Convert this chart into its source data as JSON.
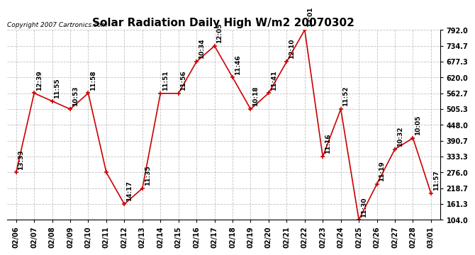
{
  "title": "Solar Radiation Daily High W/m2 20070302",
  "copyright": "Copyright 2007 Cartronics.com",
  "dates": [
    "02/06",
    "02/07",
    "02/08",
    "02/09",
    "02/10",
    "02/11",
    "02/12",
    "02/13",
    "02/14",
    "02/15",
    "02/16",
    "02/17",
    "02/18",
    "02/19",
    "02/20",
    "02/21",
    "02/22",
    "02/23",
    "02/24",
    "02/25",
    "02/26",
    "02/27",
    "02/28",
    "03/01"
  ],
  "values": [
    276,
    563,
    534,
    505,
    563,
    276,
    161,
    218,
    562,
    562,
    677,
    734,
    620,
    505,
    563,
    677,
    792,
    333,
    505,
    104,
    234,
    360,
    400,
    200
  ],
  "labels": [
    "13:33",
    "12:39",
    "11:55",
    "10:53",
    "11:58",
    "",
    "14:17",
    "11:35",
    "11:51",
    "11:56",
    "10:34",
    "12:05",
    "11:46",
    "10:18",
    "11:41",
    "12:10",
    "12:01",
    "11:16",
    "11:52",
    "11:30",
    "11:19",
    "10:32",
    "10:05",
    "11:57"
  ],
  "ylim": [
    104.0,
    792.0
  ],
  "yticks": [
    104.0,
    161.3,
    218.7,
    276.0,
    333.3,
    390.7,
    448.0,
    505.3,
    562.7,
    620.0,
    677.3,
    734.7,
    792.0
  ],
  "line_color": "#cc0000",
  "marker_color": "#cc0000",
  "background_color": "#ffffff",
  "grid_color": "#bbbbbb",
  "title_fontsize": 11,
  "label_fontsize": 6.5,
  "copyright_fontsize": 6.5,
  "tick_fontsize": 7,
  "xtick_fontsize": 7
}
